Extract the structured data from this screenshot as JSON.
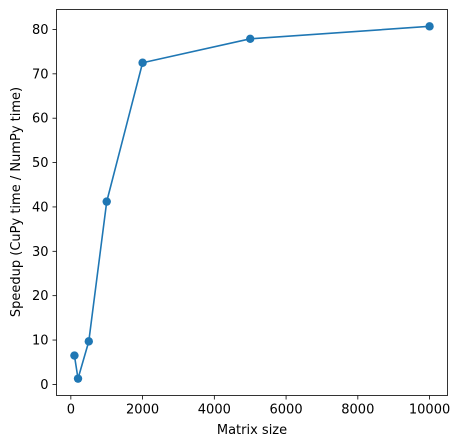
{
  "chart_data": {
    "type": "line",
    "title": "",
    "xlabel": "Matrix size",
    "ylabel": "Speedup (CuPy time / NumPy time)",
    "xlim": [
      -400,
      10500
    ],
    "ylim": [
      -2.5,
      84.5
    ],
    "xticks": [
      0,
      2000,
      4000,
      6000,
      8000,
      10000
    ],
    "yticks": [
      0,
      10,
      20,
      30,
      40,
      50,
      60,
      70,
      80
    ],
    "grid": false,
    "legend": "none",
    "series": [
      {
        "color": "#1f77b4",
        "marker": "circle",
        "points": [
          {
            "x": 100,
            "y": 6.5
          },
          {
            "x": 200,
            "y": 1.3
          },
          {
            "x": 500,
            "y": 9.7
          },
          {
            "x": 1000,
            "y": 41.2
          },
          {
            "x": 2000,
            "y": 72.5
          },
          {
            "x": 5000,
            "y": 77.9
          },
          {
            "x": 10000,
            "y": 80.7
          }
        ]
      }
    ]
  }
}
